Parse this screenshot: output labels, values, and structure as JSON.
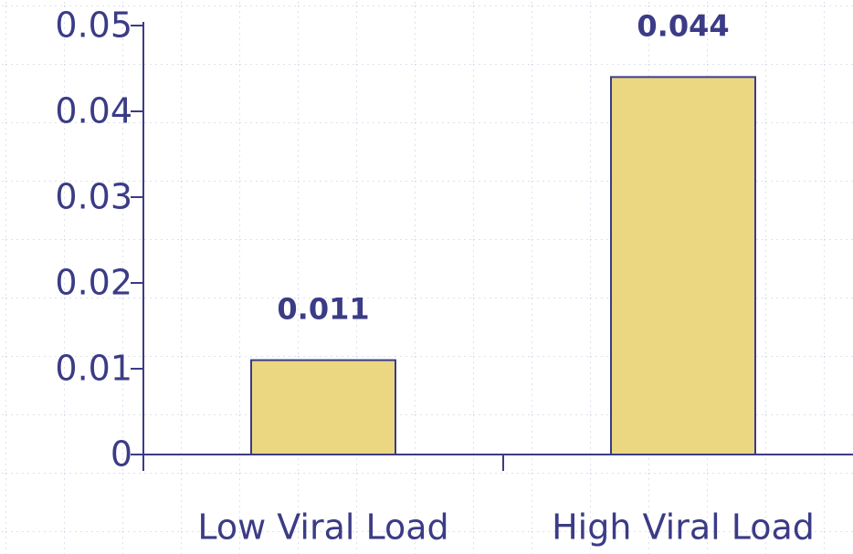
{
  "chart_data": {
    "type": "bar",
    "categories": [
      "Low Viral Load",
      "High Viral Load"
    ],
    "values": [
      0.011,
      0.044
    ],
    "color": "#ebd682",
    "ylim": [
      0,
      0.05
    ],
    "yticks": [
      0,
      0.01,
      0.02,
      0.03,
      0.04,
      0.05
    ]
  }
}
